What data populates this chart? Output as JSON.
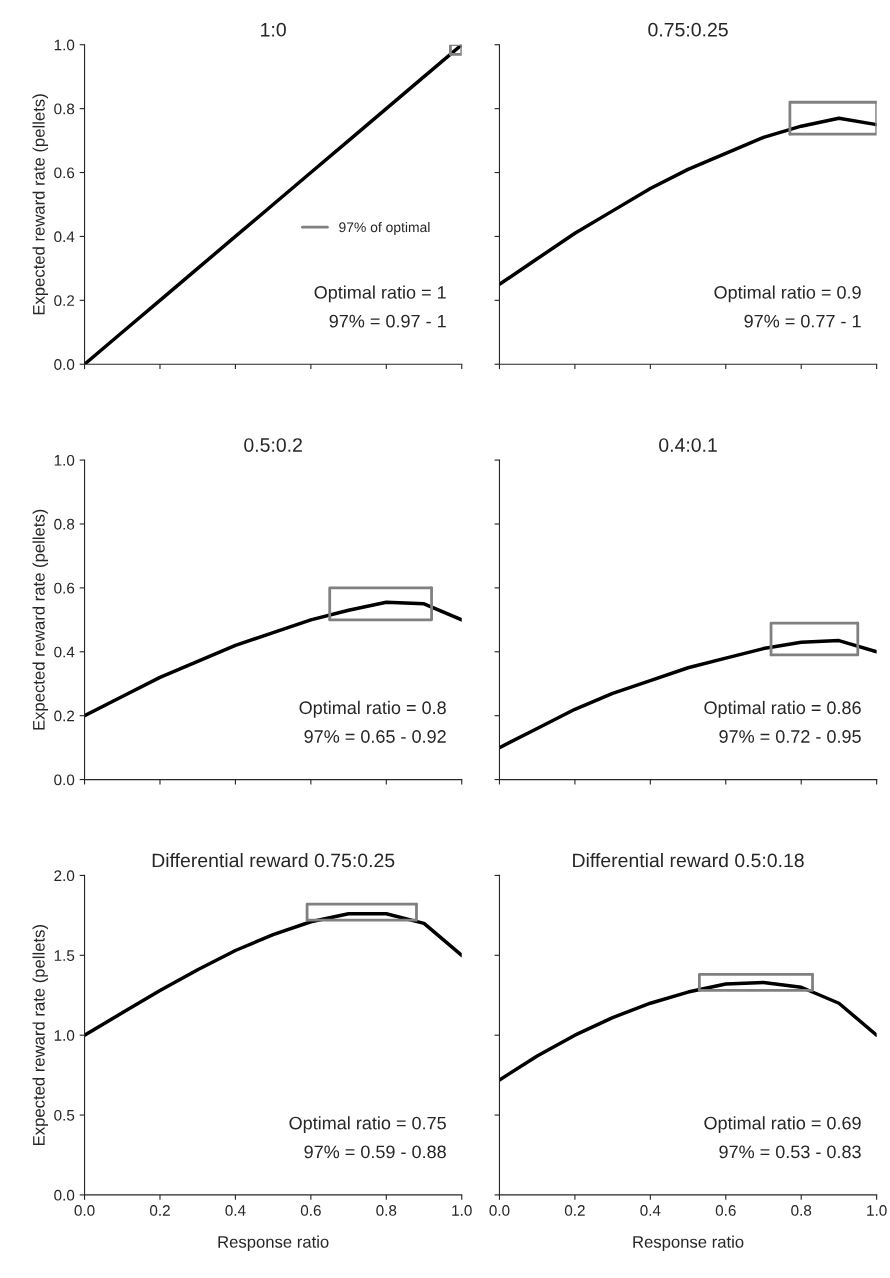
{
  "chart_data": [
    {
      "type": "line",
      "title": "1:0",
      "ylabel": "Expected reward rate (pellets)",
      "x": [
        0,
        0.1,
        0.2,
        0.3,
        0.4,
        0.5,
        0.6,
        0.7,
        0.8,
        0.9,
        1.0
      ],
      "xlim": [
        0,
        1
      ],
      "ylim": [
        0,
        1
      ],
      "xticks": [
        0,
        0.2,
        0.4,
        0.6,
        0.8,
        1
      ],
      "yticks": [
        {
          "value": 0,
          "label": "0.0"
        },
        {
          "value": 0.2,
          "label": "0.2"
        },
        {
          "value": 0.4,
          "label": "0.4"
        },
        {
          "value": 0.6,
          "label": "0.6"
        },
        {
          "value": 0.8,
          "label": "0.8"
        },
        {
          "value": 1,
          "label": "1.0"
        }
      ],
      "tick_labels": "y",
      "legend": "center right",
      "series": [
        {
          "color": "#000000",
          "values": [
            0,
            0.1,
            0.2,
            0.3,
            0.4,
            0.5,
            0.6,
            0.7,
            0.8,
            0.9,
            1.0
          ]
        },
        {
          "name": "97% of optimal",
          "color": "#808080",
          "x": [
            0.97,
            0.97,
            1.0
          ],
          "values": [
            0.97,
            1.0,
            1.0
          ]
        },
        {
          "color": "#808080",
          "x": [
            0.97,
            1.0,
            1.0
          ],
          "values": [
            0.97,
            0.97,
            1.0
          ]
        }
      ],
      "annotations": [
        "Optimal ratio = 1",
        "97% = 0.97 - 1"
      ]
    },
    {
      "type": "line",
      "title": "0.75:0.25",
      "x": [
        0,
        0.1,
        0.2,
        0.3,
        0.4,
        0.5,
        0.6,
        0.7,
        0.8,
        0.9,
        1.0
      ],
      "xlim": [
        0,
        1
      ],
      "ylim": [
        0,
        1
      ],
      "xticks": [
        0,
        0.2,
        0.4,
        0.6,
        0.8,
        1
      ],
      "yticks": [
        0,
        0.2,
        0.4,
        0.6,
        0.8,
        1
      ],
      "tick_labels": false,
      "series": [
        {
          "color": "#000000",
          "values": [
            0.25,
            0.33,
            0.41,
            0.48,
            0.55,
            0.61,
            0.66,
            0.71,
            0.745,
            0.77,
            0.75
          ]
        },
        {
          "color": "#808080",
          "x": [
            0.77,
            0.77,
            1.0
          ],
          "values": [
            0.72,
            0.82,
            0.82
          ]
        },
        {
          "color": "#808080",
          "x": [
            0.77,
            1.0,
            1.0
          ],
          "values": [
            0.72,
            0.72,
            0.82
          ]
        }
      ],
      "annotations": [
        "Optimal ratio = 0.9",
        "97% = 0.77 - 1"
      ]
    },
    {
      "type": "line",
      "title": "0.5:0.2",
      "ylabel": "Expected reward rate (pellets)",
      "x": [
        0,
        0.1,
        0.2,
        0.3,
        0.4,
        0.5,
        0.6,
        0.7,
        0.8,
        0.9,
        1.0
      ],
      "xlim": [
        0,
        1
      ],
      "ylim": [
        0,
        1
      ],
      "xticks": [
        0,
        0.2,
        0.4,
        0.6,
        0.8,
        1
      ],
      "yticks": [
        {
          "value": 0,
          "label": "0.0"
        },
        {
          "value": 0.2,
          "label": "0.2"
        },
        {
          "value": 0.4,
          "label": "0.4"
        },
        {
          "value": 0.6,
          "label": "0.6"
        },
        {
          "value": 0.8,
          "label": "0.8"
        },
        {
          "value": 1,
          "label": "1.0"
        }
      ],
      "tick_labels": "y",
      "series": [
        {
          "color": "#000000",
          "values": [
            0.2,
            0.26,
            0.32,
            0.37,
            0.42,
            0.46,
            0.5,
            0.53,
            0.555,
            0.55,
            0.5
          ]
        },
        {
          "color": "#808080",
          "x": [
            0.65,
            0.65,
            0.92
          ],
          "values": [
            0.5,
            0.6,
            0.6
          ]
        },
        {
          "color": "#808080",
          "x": [
            0.65,
            0.92,
            0.92
          ],
          "values": [
            0.5,
            0.5,
            0.6
          ]
        }
      ],
      "annotations": [
        "Optimal ratio = 0.8",
        "97% = 0.65 - 0.92"
      ]
    },
    {
      "type": "line",
      "title": "0.4:0.1",
      "x": [
        0,
        0.1,
        0.2,
        0.3,
        0.4,
        0.5,
        0.6,
        0.7,
        0.8,
        0.9,
        1.0
      ],
      "xlim": [
        0,
        1
      ],
      "ylim": [
        0,
        1
      ],
      "xticks": [
        0,
        0.2,
        0.4,
        0.6,
        0.8,
        1
      ],
      "yticks": [
        0,
        0.2,
        0.4,
        0.6,
        0.8,
        1
      ],
      "tick_labels": false,
      "series": [
        {
          "color": "#000000",
          "values": [
            0.1,
            0.16,
            0.22,
            0.27,
            0.31,
            0.35,
            0.38,
            0.41,
            0.43,
            0.435,
            0.4
          ]
        },
        {
          "color": "#808080",
          "x": [
            0.72,
            0.72,
            0.95
          ],
          "values": [
            0.39,
            0.49,
            0.49
          ]
        },
        {
          "color": "#808080",
          "x": [
            0.72,
            0.95,
            0.95
          ],
          "values": [
            0.39,
            0.39,
            0.49
          ]
        }
      ],
      "annotations": [
        "Optimal ratio = 0.86",
        "97% = 0.72 - 0.95"
      ]
    },
    {
      "type": "line",
      "title": "Differential reward 0.75:0.25",
      "xlabel": "Response ratio",
      "ylabel": "Expected reward rate (pellets)",
      "x": [
        0,
        0.1,
        0.2,
        0.3,
        0.4,
        0.5,
        0.6,
        0.7,
        0.8,
        0.9,
        1.0
      ],
      "xlim": [
        0,
        1
      ],
      "ylim": [
        0,
        2
      ],
      "xticks": [
        {
          "value": 0,
          "label": "0.0"
        },
        {
          "value": 0.2,
          "label": "0.2"
        },
        {
          "value": 0.4,
          "label": "0.4"
        },
        {
          "value": 0.6,
          "label": "0.6"
        },
        {
          "value": 0.8,
          "label": "0.8"
        },
        {
          "value": 1,
          "label": "1.0"
        }
      ],
      "yticks": [
        {
          "value": 0,
          "label": "0.0"
        },
        {
          "value": 0.5,
          "label": "0.5"
        },
        {
          "value": 1,
          "label": "1.0"
        },
        {
          "value": 1.5,
          "label": "1.5"
        },
        {
          "value": 2,
          "label": "2.0"
        }
      ],
      "series": [
        {
          "color": "#000000",
          "values": [
            1.0,
            1.14,
            1.28,
            1.41,
            1.53,
            1.63,
            1.71,
            1.76,
            1.76,
            1.7,
            1.5
          ]
        },
        {
          "color": "#808080",
          "x": [
            0.59,
            0.59,
            0.88
          ],
          "values": [
            1.72,
            1.82,
            1.82
          ]
        },
        {
          "color": "#808080",
          "x": [
            0.59,
            0.88,
            0.88
          ],
          "values": [
            1.72,
            1.72,
            1.82
          ]
        }
      ],
      "annotations": [
        "Optimal ratio = 0.75",
        "97% = 0.59 - 0.88"
      ]
    },
    {
      "type": "line",
      "title": "Differential reward 0.5:0.18",
      "xlabel": "Response ratio",
      "x": [
        0,
        0.1,
        0.2,
        0.3,
        0.4,
        0.5,
        0.6,
        0.7,
        0.8,
        0.9,
        1.0
      ],
      "xlim": [
        0,
        1
      ],
      "ylim": [
        0,
        2
      ],
      "xticks": [
        {
          "value": 0,
          "label": "0.0"
        },
        {
          "value": 0.2,
          "label": "0.2"
        },
        {
          "value": 0.4,
          "label": "0.4"
        },
        {
          "value": 0.6,
          "label": "0.6"
        },
        {
          "value": 0.8,
          "label": "0.8"
        },
        {
          "value": 1,
          "label": "1.0"
        }
      ],
      "yticks": [
        0,
        0.5,
        1,
        1.5,
        2
      ],
      "tick_labels": "x",
      "series": [
        {
          "color": "#000000",
          "values": [
            0.72,
            0.87,
            1.0,
            1.11,
            1.2,
            1.27,
            1.32,
            1.33,
            1.3,
            1.2,
            1.0
          ]
        },
        {
          "color": "#808080",
          "x": [
            0.53,
            0.53,
            0.83
          ],
          "values": [
            1.28,
            1.38,
            1.38
          ]
        },
        {
          "color": "#808080",
          "x": [
            0.53,
            0.83,
            0.83
          ],
          "values": [
            1.28,
            1.28,
            1.38
          ]
        }
      ],
      "annotations": [
        "Optimal ratio = 0.69",
        "97% = 0.53 - 0.83"
      ]
    }
  ]
}
